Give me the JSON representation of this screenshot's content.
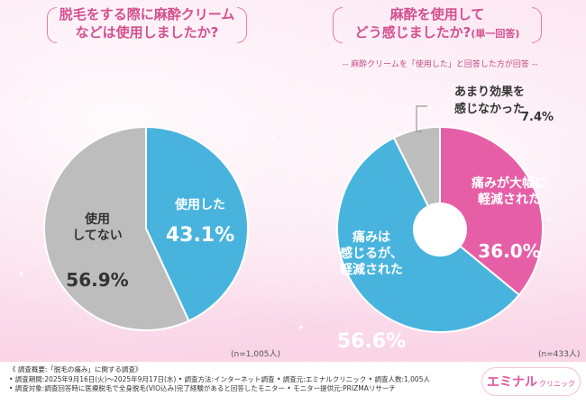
{
  "titles": {
    "left_line1": "脱毛をする際に麻酔クリーム",
    "left_line2": "などは使用しましたか?",
    "right_line1": "麻酔を使用して",
    "right_line2": "どう感じましたか?",
    "right_suffix": "(単一回答)"
  },
  "subnote": "-- 麻酔クリームを「使用した」と回答した方が回答 --",
  "chart_data": [
    {
      "type": "pie",
      "title": "脱毛をする際に麻酔クリームなどは使用しましたか?",
      "sample": "(n=1,005人)",
      "slices": [
        {
          "label_lines": [
            "使用した"
          ],
          "value": 43.1,
          "value_text": "43.1%",
          "color": "#48b4de"
        },
        {
          "label_lines": [
            "使用",
            "してない"
          ],
          "value": 56.9,
          "value_text": "56.9%",
          "color": "#bdbdbd"
        }
      ]
    },
    {
      "type": "pie",
      "title": "麻酔を使用してどう感じましたか?(単一回答)",
      "sample": "(n=433人)",
      "slices": [
        {
          "label_lines": [
            "痛みが大幅に",
            "軽減された"
          ],
          "value": 36.0,
          "value_text": "36.0%",
          "color": "#e65fa6"
        },
        {
          "label_lines": [
            "痛みは",
            "感じるが、",
            "軽減された"
          ],
          "value": 56.6,
          "value_text": "56.6%",
          "color": "#48b4de"
        },
        {
          "label_lines": [
            "あまり効果を",
            "感じなかった"
          ],
          "value": 7.4,
          "value_text": "7.4%",
          "color": "#bdbdbd"
        }
      ]
    }
  ],
  "footer": {
    "line1": "《 調査概要:「脱毛の痛み」に関する調査》",
    "line2": "• 調査期間:2025年9月16日(火)〜2025年9月17日(水) • 調査方法:インターネット調査 • 調査元:エミナルクリニック • 調査人数:1,005人",
    "line3": "• 調査対象:調査回答時に医療脱毛で全身脱毛(VIO込み)完了経験があると回答したモニター    • モニター提供元:PRIZMAリサーチ"
  },
  "logo": {
    "main": "エミナル",
    "sub": "クリニック"
  },
  "colors": {
    "pink": "#e65fa6",
    "blue": "#48b4de",
    "gray": "#bdbdbd",
    "title": "#d44f8f"
  }
}
